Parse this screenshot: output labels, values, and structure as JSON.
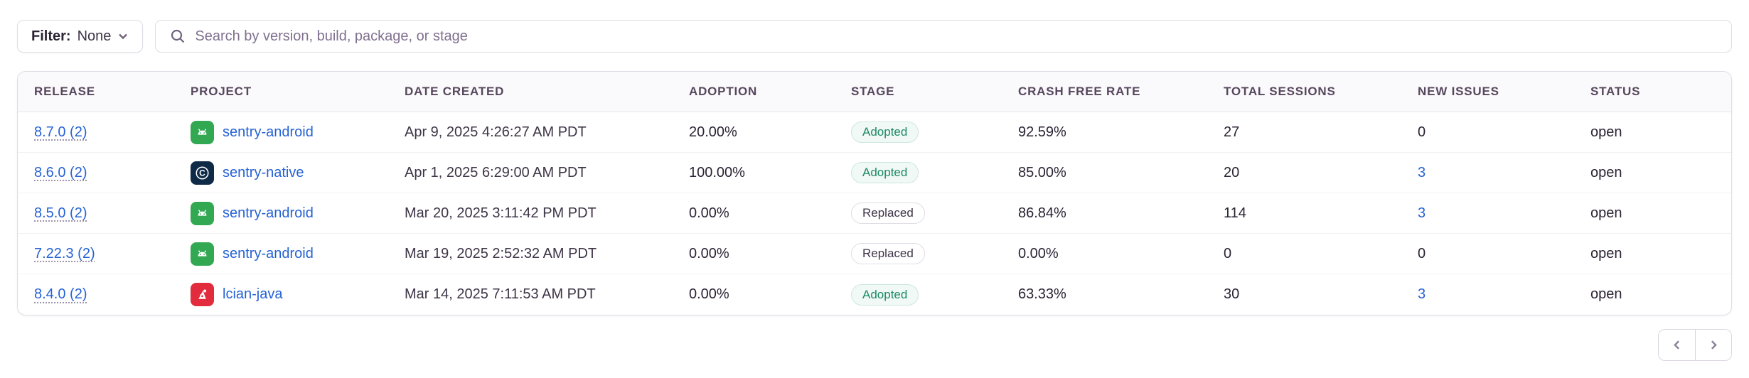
{
  "toolbar": {
    "filter_label": "Filter:",
    "filter_value": "None",
    "search_placeholder": "Search by version, build, package, or stage"
  },
  "table": {
    "columns": [
      "RELEASE",
      "PROJECT",
      "DATE CREATED",
      "ADOPTION",
      "STAGE",
      "CRASH FREE RATE",
      "TOTAL SESSIONS",
      "NEW ISSUES",
      "STATUS"
    ],
    "rows": [
      {
        "release": "8.7.0 (2)",
        "project": "sentry-android",
        "project_icon": "android",
        "date_created": "Apr 9, 2025 4:26:27 AM PDT",
        "adoption": "20.00%",
        "stage": "Adopted",
        "crash_free_rate": "92.59%",
        "total_sessions": "27",
        "new_issues": "0",
        "new_issues_is_link": false,
        "status": "open"
      },
      {
        "release": "8.6.0 (2)",
        "project": "sentry-native",
        "project_icon": "c",
        "date_created": "Apr 1, 2025 6:29:00 AM PDT",
        "adoption": "100.00%",
        "stage": "Adopted",
        "crash_free_rate": "85.00%",
        "total_sessions": "20",
        "new_issues": "3",
        "new_issues_is_link": true,
        "status": "open"
      },
      {
        "release": "8.5.0 (2)",
        "project": "sentry-android",
        "project_icon": "android",
        "date_created": "Mar 20, 2025 3:11:42 PM PDT",
        "adoption": "0.00%",
        "stage": "Replaced",
        "crash_free_rate": "86.84%",
        "total_sessions": "114",
        "new_issues": "3",
        "new_issues_is_link": true,
        "status": "open"
      },
      {
        "release": "7.22.3 (2)",
        "project": "sentry-android",
        "project_icon": "android",
        "date_created": "Mar 19, 2025 2:52:32 AM PDT",
        "adoption": "0.00%",
        "stage": "Replaced",
        "crash_free_rate": "0.00%",
        "total_sessions": "0",
        "new_issues": "0",
        "new_issues_is_link": false,
        "status": "open"
      },
      {
        "release": "8.4.0 (2)",
        "project": "lcian-java",
        "project_icon": "java",
        "date_created": "Mar 14, 2025 7:11:53 AM PDT",
        "adoption": "0.00%",
        "stage": "Adopted",
        "crash_free_rate": "63.33%",
        "total_sessions": "30",
        "new_issues": "3",
        "new_issues_is_link": true,
        "status": "open"
      }
    ]
  },
  "pagination": {
    "prev_icon": "chevron-left",
    "next_icon": "chevron-right"
  },
  "colors": {
    "link_blue": "#2562D4",
    "adopted_green": "#1D8A67",
    "android_icon_green": "#32A852",
    "native_icon_navy": "#0F2A47",
    "java_icon_red": "#E22B3C",
    "header_bg": "#FAF9FB",
    "border": "#E0DCE5"
  }
}
